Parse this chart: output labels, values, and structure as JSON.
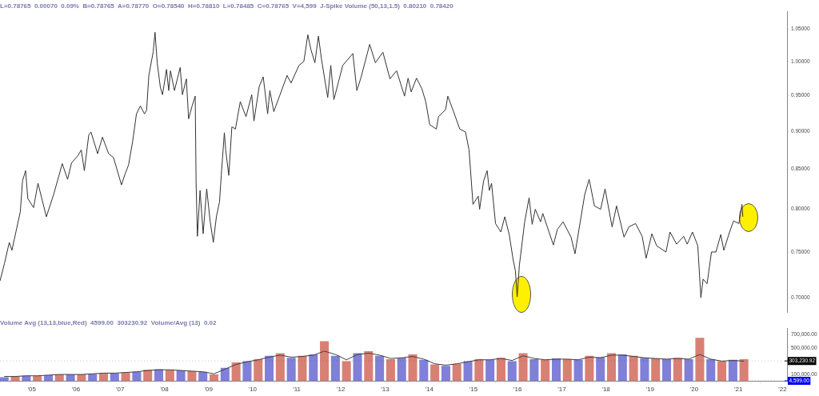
{
  "chart_data": [
    {
      "type": "line",
      "title": "L=0.78765  0.00070  0.09%  B=0.78765  A=0.78770  O=0.78540  H=0.78810  L=0.78485  C=0.78765  V=4,599  J-Spike Volume (50,13,1.5)  0.80210  0.78420",
      "log": true,
      "marker": "none",
      "tick_labels": "y",
      "xlim": [
        2004.28,
        2022.1
      ],
      "ylim": [
        0.685,
        1.078
      ],
      "yticks": [
        {
          "value": 0.7,
          "label": "0.70000"
        },
        {
          "value": 0.75,
          "label": "0.75000"
        },
        {
          "value": 0.8,
          "label": "0.80000"
        },
        {
          "value": 0.85,
          "label": "0.85000"
        },
        {
          "value": 0.9,
          "label": "0.90000"
        },
        {
          "value": 0.95,
          "label": "0.95000"
        },
        {
          "value": 1.0,
          "label": "1.00000"
        },
        {
          "value": 1.05,
          "label": "1.05000"
        }
      ],
      "series": [
        {
          "color": "#333333",
          "x": [
            2004.28,
            2004.38,
            2004.49,
            2004.55,
            2004.64,
            2004.74,
            2004.79,
            2004.86,
            2004.91,
            2005.04,
            2005.14,
            2005.33,
            2005.5,
            2005.69,
            2005.81,
            2005.9,
            2006.04,
            2006.12,
            2006.19,
            2006.29,
            2006.34,
            2006.49,
            2006.6,
            2006.74,
            2006.85,
            2007.03,
            2007.12,
            2007.19,
            2007.28,
            2007.37,
            2007.46,
            2007.55,
            2007.6,
            2007.65,
            2007.75,
            2007.79,
            2007.84,
            2007.91,
            2007.96,
            2008.05,
            2008.1,
            2008.14,
            2008.23,
            2008.36,
            2008.41,
            2008.5,
            2008.55,
            2008.63,
            2008.7,
            2008.72,
            2008.75,
            2008.81,
            2008.88,
            2008.96,
            2009.04,
            2009.11,
            2009.18,
            2009.25,
            2009.29,
            2009.36,
            2009.39,
            2009.46,
            2009.53,
            2009.61,
            2009.72,
            2009.85,
            2009.98,
            2010.03,
            2010.15,
            2010.24,
            2010.34,
            2010.39,
            2010.48,
            2010.78,
            2010.87,
            2011.05,
            2011.16,
            2011.25,
            2011.32,
            2011.41,
            2011.49,
            2011.56,
            2011.7,
            2011.77,
            2011.84,
            2011.95,
            2012.04,
            2012.27,
            2012.36,
            2012.45,
            2012.65,
            2012.78,
            2012.95,
            2013.11,
            2013.26,
            2013.44,
            2013.52,
            2013.59,
            2013.71,
            2013.83,
            2013.92,
            2014.01,
            2014.16,
            2014.21,
            2014.37,
            2014.42,
            2014.55,
            2014.69,
            2014.82,
            2014.9,
            2014.99,
            2015.11,
            2015.14,
            2015.23,
            2015.31,
            2015.36,
            2015.41,
            2015.5,
            2015.62,
            2015.71,
            2015.81,
            2015.9,
            2015.95,
            2015.99,
            2016.04,
            2016.16,
            2016.26,
            2016.33,
            2016.4,
            2016.52,
            2016.57,
            2016.81,
            2016.9,
            2017.03,
            2017.21,
            2017.3,
            2017.38,
            2017.52,
            2017.62,
            2017.74,
            2017.88,
            2017.98,
            2018.14,
            2018.24,
            2018.41,
            2018.52,
            2018.67,
            2018.82,
            2018.91,
            2019.04,
            2019.15,
            2019.36,
            2019.45,
            2019.6,
            2019.76,
            2019.84,
            2019.96,
            2020.08,
            2020.15,
            2020.2,
            2020.29,
            2020.39,
            2020.49,
            2020.6,
            2020.67,
            2020.8,
            2020.89,
            2021.01,
            2021.08,
            2021.1
          ],
          "values": [
            0.718,
            0.737,
            0.761,
            0.752,
            0.773,
            0.797,
            0.835,
            0.848,
            0.813,
            0.802,
            0.832,
            0.791,
            0.819,
            0.857,
            0.837,
            0.858,
            0.867,
            0.875,
            0.848,
            0.895,
            0.899,
            0.87,
            0.892,
            0.87,
            0.865,
            0.83,
            0.845,
            0.855,
            0.885,
            0.924,
            0.935,
            0.924,
            0.929,
            0.979,
            1.015,
            1.045,
            0.998,
            0.962,
            0.951,
            0.988,
            0.957,
            0.986,
            0.957,
            0.991,
            0.951,
            0.974,
            0.917,
            0.935,
            0.949,
            0.832,
            0.768,
            0.823,
            0.771,
            0.825,
            0.785,
            0.761,
            0.791,
            0.809,
            0.842,
            0.898,
            0.875,
            0.842,
            0.906,
            0.903,
            0.941,
            0.92,
            0.951,
            0.914,
            0.963,
            0.977,
            0.924,
            0.957,
            0.927,
            0.979,
            0.968,
            0.994,
            1.0,
            1.041,
            1.018,
            0.998,
            1.039,
            1.003,
            0.947,
            0.994,
            0.944,
            0.971,
            0.994,
            1.012,
            0.957,
            0.975,
            1.026,
            0.998,
            1.014,
            0.974,
            0.986,
            0.949,
            0.975,
            0.955,
            0.975,
            0.96,
            0.941,
            0.909,
            0.903,
            0.92,
            0.93,
            0.949,
            0.927,
            0.903,
            0.899,
            0.875,
            0.806,
            0.816,
            0.8,
            0.835,
            0.848,
            0.823,
            0.832,
            0.783,
            0.773,
            0.791,
            0.77,
            0.741,
            0.729,
            0.701,
            0.735,
            0.785,
            0.814,
            0.782,
            0.8,
            0.785,
            0.795,
            0.758,
            0.776,
            0.785,
            0.767,
            0.748,
            0.773,
            0.818,
            0.837,
            0.804,
            0.8,
            0.825,
            0.779,
            0.804,
            0.767,
            0.779,
            0.783,
            0.768,
            0.743,
            0.771,
            0.757,
            0.75,
            0.773,
            0.759,
            0.768,
            0.759,
            0.773,
            0.757,
            0.7,
            0.72,
            0.715,
            0.75,
            0.75,
            0.77,
            0.752,
            0.773,
            0.786,
            0.783,
            0.806,
            0.791
          ]
        }
      ]
    },
    {
      "type": "bar",
      "title": "Volume Avg (13,13,blue,Red)  4599.00  303230.92  Volume/Avg (13)  0.02",
      "xlim": [
        2004.28,
        2022.1
      ],
      "ylim": [
        0,
        790000
      ],
      "xticks": [
        {
          "value": 2005,
          "label": "'05"
        },
        {
          "value": 2006,
          "label": "'06"
        },
        {
          "value": 2007,
          "label": "'07"
        },
        {
          "value": 2008,
          "label": "'08"
        },
        {
          "value": 2009,
          "label": "'09"
        },
        {
          "value": 2010,
          "label": "'10"
        },
        {
          "value": 2011,
          "label": "'11"
        },
        {
          "value": 2012,
          "label": "'12"
        },
        {
          "value": 2013,
          "label": "'13"
        },
        {
          "value": 2014,
          "label": "'14"
        },
        {
          "value": 2015,
          "label": "'15"
        },
        {
          "value": 2016,
          "label": "'16"
        },
        {
          "value": 2017,
          "label": "'17"
        },
        {
          "value": 2018,
          "label": "'18"
        },
        {
          "value": 2019,
          "label": "'19"
        },
        {
          "value": 2020,
          "label": "'20"
        },
        {
          "value": 2021,
          "label": "'21"
        },
        {
          "value": 2022,
          "label": "'22"
        }
      ],
      "yticks": [
        {
          "value": 100000,
          "label": "100,000.00"
        },
        {
          "value": 500000,
          "label": "500,000.00"
        },
        {
          "value": 700000,
          "label": "700,000.00"
        }
      ],
      "ref_lines": [
        {
          "axis": "y",
          "value": 303230.92,
          "label": "303,230.92",
          "color": "#000000"
        },
        {
          "axis": "y",
          "value": 4599,
          "label": "4,599.00",
          "color": "#0000ee"
        }
      ],
      "x": [
        2004.375,
        2004.625,
        2004.875,
        2005.125,
        2005.375,
        2005.625,
        2005.875,
        2006.125,
        2006.375,
        2006.625,
        2006.875,
        2007.125,
        2007.375,
        2007.625,
        2007.875,
        2008.125,
        2008.375,
        2008.625,
        2008.875,
        2009.125,
        2009.375,
        2009.625,
        2009.875,
        2010.125,
        2010.375,
        2010.625,
        2010.875,
        2011.125,
        2011.375,
        2011.625,
        2011.875,
        2012.125,
        2012.375,
        2012.625,
        2012.875,
        2013.125,
        2013.375,
        2013.625,
        2013.875,
        2014.125,
        2014.375,
        2014.625,
        2014.875,
        2015.125,
        2015.375,
        2015.625,
        2015.875,
        2016.125,
        2016.375,
        2016.625,
        2016.875,
        2017.125,
        2017.375,
        2017.625,
        2017.875,
        2018.125,
        2018.375,
        2018.625,
        2018.875,
        2019.125,
        2019.375,
        2019.625,
        2019.875,
        2020.125,
        2020.375,
        2020.625,
        2020.875,
        2021.125
      ],
      "series": [
        {
          "colors": [
            "#8080d8",
            "#d98074",
            "#8080d8",
            "#d98074",
            "#8080d8",
            "#d98074",
            "#8080d8",
            "#d98074",
            "#8080d8",
            "#d98074",
            "#8080d8",
            "#d98074",
            "#8080d8",
            "#d98074",
            "#8080d8",
            "#d98074",
            "#8080d8",
            "#d98074",
            "#8080d8",
            "#d98074",
            "#8080d8",
            "#d98074",
            "#8080d8",
            "#d98074",
            "#8080d8",
            "#d98074",
            "#8080d8",
            "#d98074",
            "#8080d8",
            "#d98074",
            "#8080d8",
            "#d98074",
            "#8080d8",
            "#d98074",
            "#8080d8",
            "#d98074",
            "#8080d8",
            "#d98074",
            "#8080d8",
            "#d98074",
            "#8080d8",
            "#d98074",
            "#8080d8",
            "#d98074",
            "#8080d8",
            "#d98074",
            "#8080d8",
            "#d98074",
            "#8080d8",
            "#d98074",
            "#8080d8",
            "#d98074",
            "#8080d8",
            "#d98074",
            "#8080d8",
            "#d98074",
            "#8080d8",
            "#d98074",
            "#8080d8",
            "#d98074",
            "#8080d8",
            "#d98074",
            "#8080d8",
            "#d98074",
            "#8080d8",
            "#d98074",
            "#8080d8",
            "#d98074"
          ],
          "values": [
            60000,
            70000,
            80000,
            80000,
            90000,
            100000,
            100000,
            100000,
            110000,
            120000,
            120000,
            130000,
            140000,
            170000,
            180000,
            170000,
            160000,
            150000,
            140000,
            100000,
            200000,
            280000,
            300000,
            330000,
            380000,
            420000,
            350000,
            380000,
            400000,
            600000,
            380000,
            300000,
            420000,
            450000,
            380000,
            330000,
            350000,
            400000,
            320000,
            250000,
            230000,
            260000,
            300000,
            330000,
            320000,
            350000,
            300000,
            420000,
            330000,
            320000,
            340000,
            330000,
            320000,
            380000,
            360000,
            420000,
            400000,
            380000,
            350000,
            340000,
            330000,
            350000,
            330000,
            650000,
            330000,
            300000,
            320000,
            330000
          ]
        },
        {
          "type": "line",
          "color": "#404040",
          "values": [
            70000,
            70000,
            80000,
            80000,
            90000,
            100000,
            100000,
            100000,
            110000,
            120000,
            120000,
            130000,
            140000,
            160000,
            170000,
            170000,
            160000,
            150000,
            140000,
            110000,
            180000,
            250000,
            290000,
            320000,
            360000,
            390000,
            360000,
            370000,
            390000,
            450000,
            400000,
            320000,
            400000,
            420000,
            390000,
            340000,
            350000,
            370000,
            330000,
            260000,
            240000,
            260000,
            290000,
            320000,
            320000,
            340000,
            310000,
            380000,
            340000,
            320000,
            330000,
            330000,
            320000,
            360000,
            350000,
            390000,
            390000,
            370000,
            350000,
            340000,
            330000,
            340000,
            330000,
            400000,
            330000,
            300000,
            310000,
            300000
          ]
        }
      ]
    }
  ]
}
